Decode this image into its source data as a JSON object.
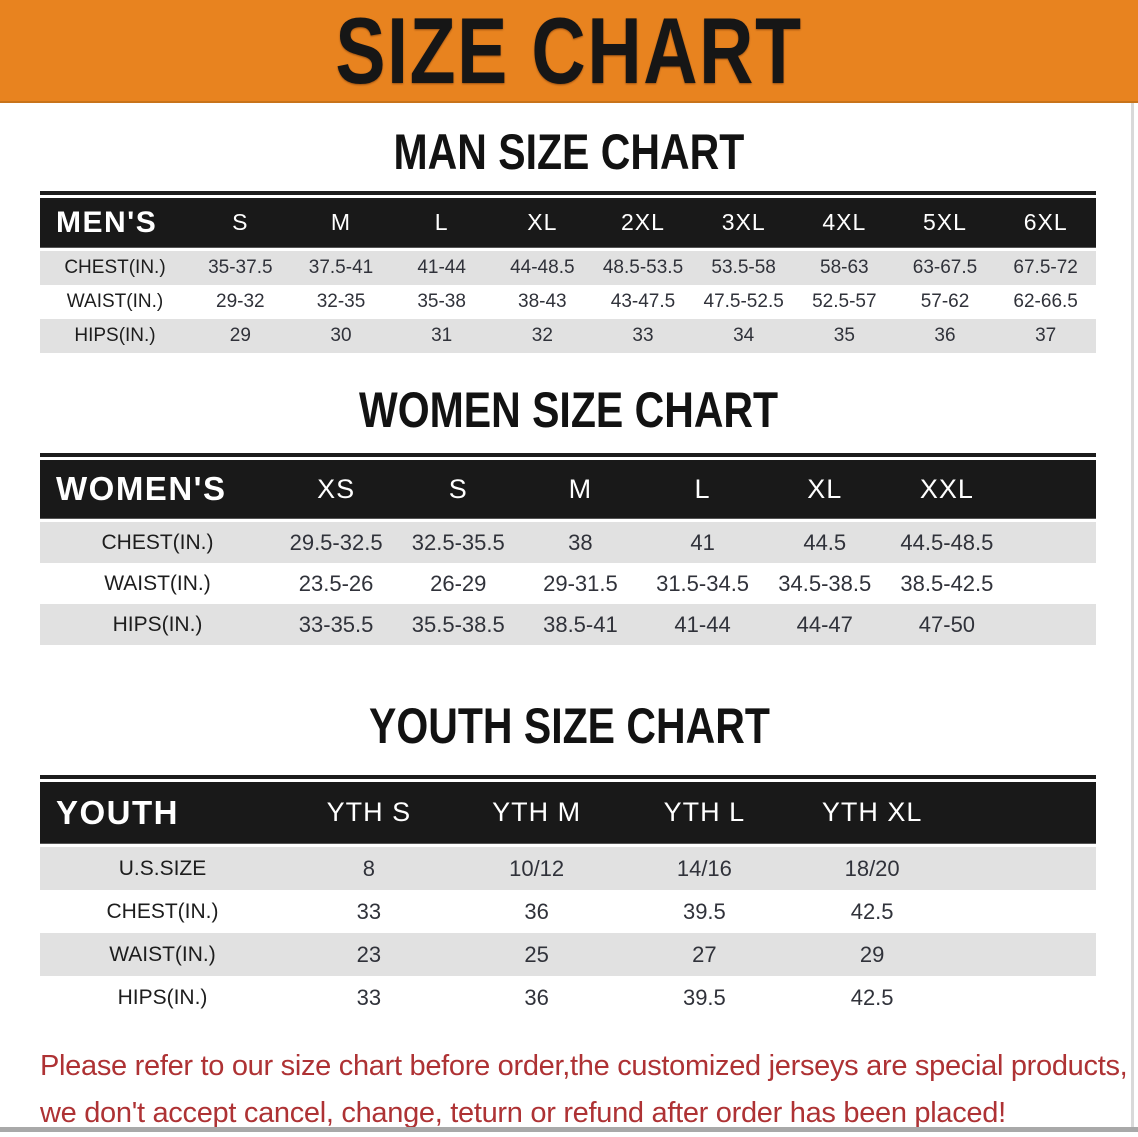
{
  "banner": {
    "title": "SIZE CHART",
    "bg_color": "#E8831F",
    "text_color": "#161616"
  },
  "sections": [
    {
      "id": "men",
      "title": "MAN SIZE CHART",
      "header_label": "MEN'S",
      "columns": [
        "S",
        "M",
        "L",
        "XL",
        "2XL",
        "3XL",
        "4XL",
        "5XL",
        "6XL"
      ],
      "rows": [
        {
          "label": "CHEST(IN.)",
          "values": [
            "35-37.5",
            "37.5-41",
            "41-44",
            "44-48.5",
            "48.5-53.5",
            "53.5-58",
            "58-63",
            "63-67.5",
            "67.5-72"
          ]
        },
        {
          "label": "WAIST(IN.)",
          "values": [
            "29-32",
            "32-35",
            "35-38",
            "38-43",
            "43-47.5",
            "47.5-52.5",
            "52.5-57",
            "57-62",
            "62-66.5"
          ]
        },
        {
          "label": "HIPS(IN.)",
          "values": [
            "29",
            "30",
            "31",
            "32",
            "33",
            "34",
            "35",
            "36",
            "37"
          ]
        }
      ]
    },
    {
      "id": "women",
      "title": "WOMEN SIZE CHART",
      "header_label": "WOMEN'S",
      "columns": [
        "XS",
        "S",
        "M",
        "L",
        "XL",
        "XXL"
      ],
      "rows": [
        {
          "label": "CHEST(IN.)",
          "values": [
            "29.5-32.5",
            "32.5-35.5",
            "38",
            "41",
            "44.5",
            "44.5-48.5"
          ]
        },
        {
          "label": "WAIST(IN.)",
          "values": [
            "23.5-26",
            "26-29",
            "29-31.5",
            "31.5-34.5",
            "34.5-38.5",
            "38.5-42.5"
          ]
        },
        {
          "label": "HIPS(IN.)",
          "values": [
            "33-35.5",
            "35.5-38.5",
            "38.5-41",
            "41-44",
            "44-47",
            "47-50"
          ]
        }
      ]
    },
    {
      "id": "youth",
      "title": "YOUTH SIZE CHART",
      "header_label": "YOUTH",
      "columns": [
        "YTH S",
        "YTH M",
        "YTH L",
        "YTH XL"
      ],
      "rows": [
        {
          "label": "U.S.SIZE",
          "values": [
            "8",
            "10/12",
            "14/16",
            "18/20"
          ]
        },
        {
          "label": "CHEST(IN.)",
          "values": [
            "33",
            "36",
            "39.5",
            "42.5"
          ]
        },
        {
          "label": "WAIST(IN.)",
          "values": [
            "23",
            "25",
            "27",
            "29"
          ]
        },
        {
          "label": "HIPS(IN.)",
          "values": [
            "33",
            "36",
            "39.5",
            "42.5"
          ]
        }
      ]
    }
  ],
  "table_colors": {
    "header_bar": "#191919",
    "alt_row": "#e1e1e1",
    "border": "#1c1c1c"
  },
  "disclaimer": {
    "line1": "Please refer to our size chart before order,the customized jerseys are special products,",
    "line2": "we don't accept cancel, change, teturn or refund after order has been placed!",
    "color": "#AE3234"
  }
}
